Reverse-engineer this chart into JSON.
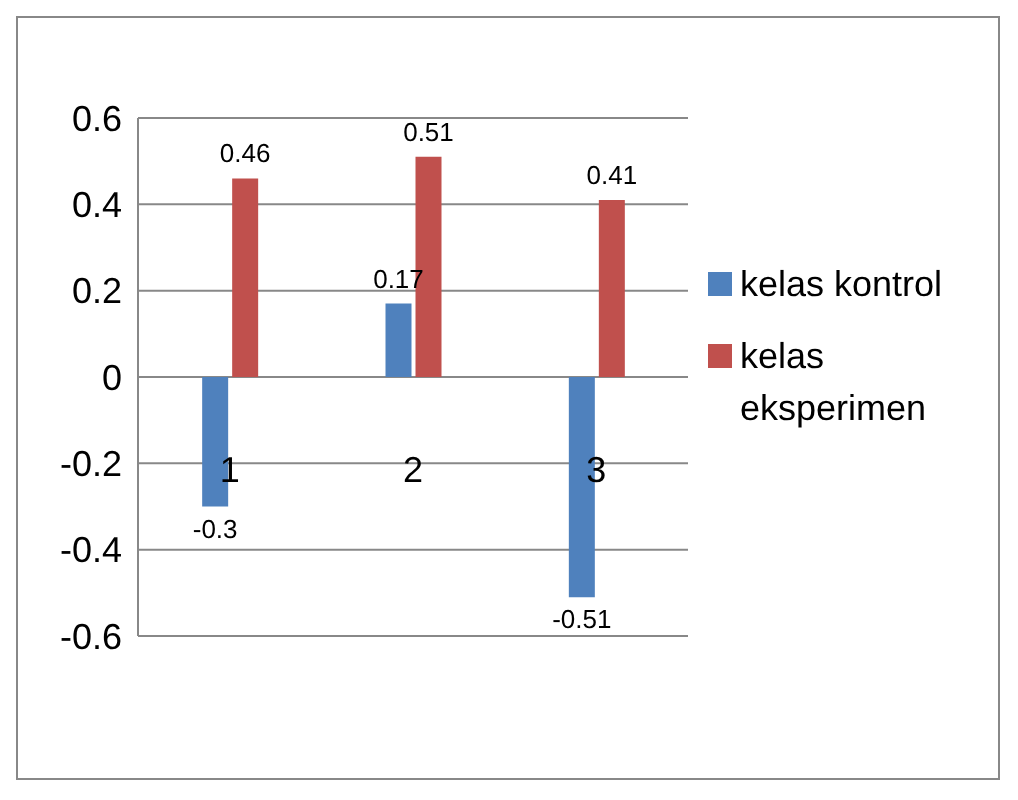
{
  "chart_data": {
    "type": "bar",
    "categories": [
      "1",
      "2",
      "3"
    ],
    "series": [
      {
        "name": "kelas kontrol",
        "color": "#4f81bd",
        "values": [
          -0.3,
          0.17,
          -0.51
        ]
      },
      {
        "name": "kelas eksperimen",
        "color": "#c0504d",
        "values": [
          0.46,
          0.51,
          0.41
        ]
      }
    ],
    "ylim": [
      -0.6,
      0.6
    ],
    "yticks": [
      -0.6,
      -0.4,
      -0.2,
      0,
      0.2,
      0.4,
      0.6
    ],
    "grid": "y",
    "legend": "right",
    "data_labels": true
  }
}
